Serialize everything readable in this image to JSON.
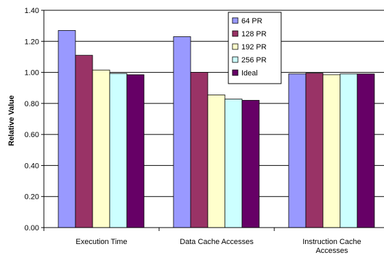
{
  "chart_data": {
    "type": "bar",
    "ylabel": "Relative Value",
    "ylim": [
      0,
      1.4
    ],
    "y_ticks": [
      "0.00",
      "0.20",
      "0.40",
      "0.60",
      "0.80",
      "1.00",
      "1.20",
      "1.40"
    ],
    "y_tick_values": [
      0,
      0.2,
      0.4,
      0.6,
      0.8,
      1.0,
      1.2,
      1.4
    ],
    "grid": true,
    "legend_position": "top-center",
    "categories": [
      [
        "Execution Time"
      ],
      [
        "Data Cache Accesses"
      ],
      [
        "Instruction Cache",
        "Accesses"
      ]
    ],
    "series": [
      {
        "name": "64 PR",
        "color": "#9999ff",
        "values": [
          1.27,
          1.23,
          0.99
        ]
      },
      {
        "name": "128 PR",
        "color": "#993366",
        "values": [
          1.11,
          1.0,
          0.995
        ]
      },
      {
        "name": "192 PR",
        "color": "#ffffcc",
        "values": [
          1.015,
          0.855,
          0.985
        ]
      },
      {
        "name": "256 PR",
        "color": "#ccffff",
        "values": [
          0.993,
          0.828,
          0.99
        ]
      },
      {
        "name": "Ideal",
        "color": "#660066",
        "values": [
          0.985,
          0.82,
          0.99
        ]
      }
    ]
  }
}
